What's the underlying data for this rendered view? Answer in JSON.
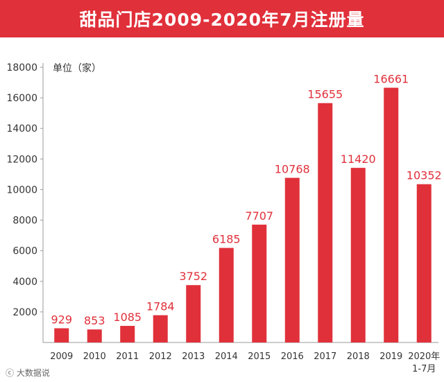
{
  "page": {
    "title": "甜品门店2009-2020年7月注册量",
    "watermark": "ⓒ 大数据说"
  },
  "colors": {
    "title_bg": "#e0303a",
    "bar": "#e0303a",
    "label": "#e0303a",
    "axis_text": "#333333",
    "axis_line": "#999999"
  },
  "chart_data": {
    "type": "bar",
    "title": "甜品门店2009-2020年7月注册量",
    "ylabel": "单位（家）",
    "xlabel": "",
    "categories": [
      "2009",
      "2010",
      "2011",
      "2012",
      "2013",
      "2014",
      "2015",
      "2016",
      "2017",
      "2018",
      "2019",
      "2020年\n1-7月"
    ],
    "values": [
      929,
      853,
      1085,
      1784,
      3752,
      6185,
      7707,
      10768,
      15655,
      11420,
      16661,
      10352
    ],
    "yticks": [
      2000,
      4000,
      6000,
      8000,
      10000,
      12000,
      14000,
      16000,
      18000
    ],
    "ylim": [
      0,
      18000
    ],
    "grid": false,
    "legend": "none"
  }
}
